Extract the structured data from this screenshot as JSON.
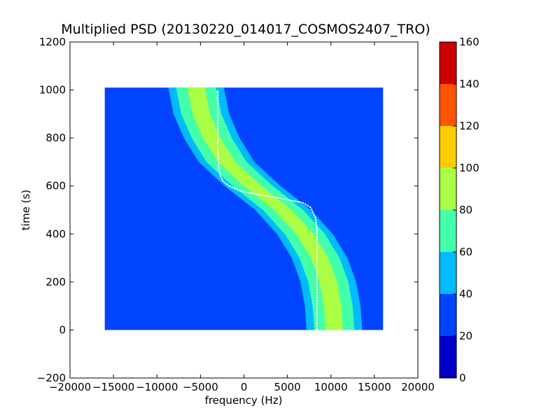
{
  "chart_data": {
    "type": "heatmap",
    "title": "Multiplied PSD (20130220_014017_COSMOS2407_TRO)",
    "xlabel": "frequency (Hz)",
    "ylabel": "time (s)",
    "xlim": [
      -20000,
      20000
    ],
    "ylim": [
      -200,
      1200
    ],
    "x_ticks": [
      -20000,
      -15000,
      -10000,
      -5000,
      0,
      5000,
      10000,
      15000,
      20000
    ],
    "y_ticks": [
      -200,
      0,
      200,
      400,
      600,
      800,
      1000,
      1200
    ],
    "x_tick_labels": [
      "−20000",
      "−15000",
      "−10000",
      "−5000",
      "0",
      "5000",
      "10000",
      "15000",
      "20000"
    ],
    "y_tick_labels": [
      "−200",
      "0",
      "200",
      "400",
      "600",
      "800",
      "1000",
      "1200"
    ],
    "data_extent": {
      "x": [
        -16000,
        16000
      ],
      "y": [
        0,
        1010
      ]
    },
    "background_level": 25,
    "band": {
      "center_curve": [
        [
          0,
          10400
        ],
        [
          100,
          10200
        ],
        [
          200,
          9700
        ],
        [
          300,
          8700
        ],
        [
          400,
          7000
        ],
        [
          500,
          4500
        ],
        [
          600,
          1000
        ],
        [
          700,
          -2000
        ],
        [
          800,
          -3700
        ],
        [
          900,
          -4900
        ],
        [
          1010,
          -5500
        ]
      ],
      "layers": [
        {
          "level": 55,
          "half_width_hz": 3200
        },
        {
          "level": 75,
          "half_width_hz": 2300
        },
        {
          "level": 85,
          "half_width_hz": 1000
        }
      ]
    },
    "measured_track": [
      [
        0,
        8400
      ],
      [
        300,
        8400
      ],
      [
        420,
        8400
      ],
      [
        470,
        8200
      ],
      [
        510,
        7700
      ],
      [
        530,
        6800
      ],
      [
        550,
        4000
      ],
      [
        565,
        1500
      ],
      [
        580,
        -500
      ],
      [
        600,
        -1700
      ],
      [
        620,
        -2400
      ],
      [
        640,
        -2700
      ],
      [
        680,
        -2900
      ],
      [
        750,
        -3000
      ],
      [
        1000,
        -3000
      ]
    ],
    "colorbar": {
      "min": 0,
      "max": 160,
      "tick_labels": [
        "0",
        "20",
        "40",
        "60",
        "80",
        "100",
        "120",
        "140",
        "160"
      ],
      "colors": [
        "#0000cc",
        "#0044ff",
        "#00bbff",
        "#44ffaa",
        "#aaff44",
        "#ffcc00",
        "#ff5500",
        "#cc0000"
      ]
    }
  }
}
